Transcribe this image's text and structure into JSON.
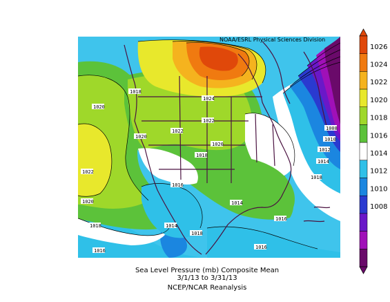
{
  "credit": "NOAA/ESRL Physical Sciences Division",
  "caption": {
    "line1": "Sea Level Pressure (mb) Composite Mean",
    "line2": "3/1/13  to 3/31/13",
    "line3": "NCEP/NCAR Reanalysis"
  },
  "colorbar": {
    "ticks": [
      "1026",
      "1024",
      "1022",
      "1020",
      "1018",
      "1016",
      "1014",
      "1012",
      "1010",
      "1008"
    ],
    "colors": [
      "#e0480a",
      "#f07a10",
      "#f5b31e",
      "#e8e82c",
      "#9fd82a",
      "#5cc23a",
      "#ffffff",
      "#2fc0e8",
      "#1b86e0",
      "#2a3ad0",
      "#6a18c8",
      "#a010b8",
      "#6a0a6a"
    ]
  },
  "map": {
    "contour_labels": [
      "1018",
      "1020",
      "1022",
      "1020",
      "1018",
      "1016",
      "1024",
      "1022",
      "1020",
      "1022",
      "1020",
      "1018",
      "1016",
      "1014",
      "1018",
      "1010",
      "1012",
      "1014",
      "1016",
      "1018",
      "1016",
      "1008",
      "1014"
    ]
  }
}
